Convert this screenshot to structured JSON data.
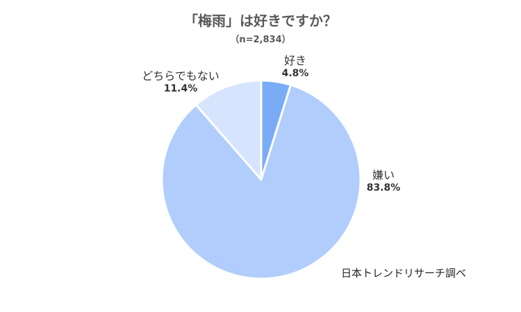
{
  "chart_data": {
    "type": "pie",
    "title": "「梅雨」は好きですか？",
    "subtitle": "（n=2,834）",
    "categories": [
      "好き",
      "嫌い",
      "どちらでもない"
    ],
    "values": [
      4.8,
      83.8,
      11.4
    ],
    "value_labels": [
      "4.8%",
      "83.8%",
      "11.4%"
    ],
    "colors": [
      "#7aabf5",
      "#b1cdfc",
      "#d6e5fd"
    ],
    "start": "12 o'clock, clockwise"
  },
  "source": "日本トレンドリサーチ調べ"
}
